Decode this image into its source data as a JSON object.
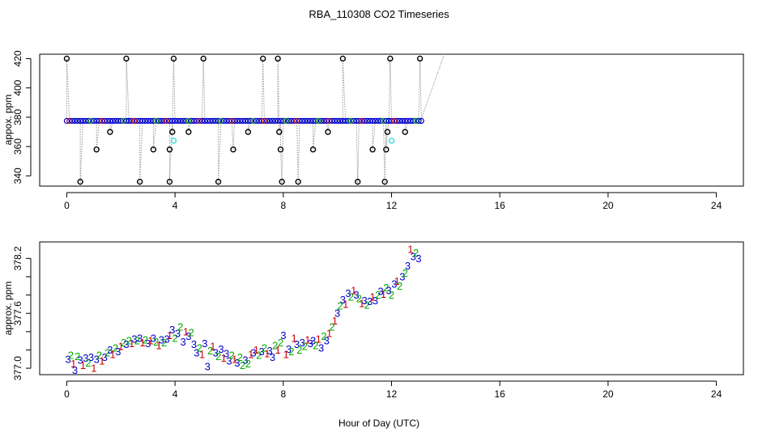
{
  "title": "RBA_110308  CO2 Timeseries",
  "xlabel": "Hour of Day (UTC)",
  "colors": {
    "black": "#000000",
    "blue": "#0000cc",
    "green": "#00aa00",
    "red": "#cc0000",
    "cyan": "#33dddd",
    "connector": "#999999"
  },
  "chart_data": [
    {
      "type": "scatter",
      "panel": "top",
      "ylabel": "appox. ppm",
      "xlim": [
        -1,
        25
      ],
      "ylim": [
        333,
        423
      ],
      "xticks": [
        0,
        4,
        8,
        12,
        16,
        20,
        24
      ],
      "yticks": [
        340,
        360,
        380,
        400,
        420
      ],
      "baseline_points": {
        "y": 377.5,
        "x": [
          0.0,
          0.1,
          0.2,
          0.3,
          0.4,
          0.5,
          0.6,
          0.7,
          0.8,
          0.9,
          1.0,
          1.1,
          1.2,
          1.3,
          1.4,
          1.5,
          1.6,
          1.7,
          1.8,
          1.9,
          2.0,
          2.1,
          2.2,
          2.3,
          2.4,
          2.5,
          2.6,
          2.7,
          2.8,
          2.9,
          3.0,
          3.1,
          3.2,
          3.3,
          3.4,
          3.5,
          3.6,
          3.7,
          3.8,
          3.9,
          4.0,
          4.1,
          4.2,
          4.3,
          4.4,
          4.5,
          4.6,
          4.7,
          4.8,
          4.9,
          5.0,
          5.1,
          5.2,
          5.3,
          5.4,
          5.5,
          5.6,
          5.7,
          5.8,
          5.9,
          6.0,
          6.1,
          6.2,
          6.3,
          6.4,
          6.5,
          6.6,
          6.7,
          6.8,
          6.9,
          7.0,
          7.1,
          7.2,
          7.3,
          7.4,
          7.5,
          7.6,
          7.7,
          7.8,
          7.9,
          8.0,
          8.1,
          8.2,
          8.3,
          8.4,
          8.5,
          8.6,
          8.7,
          8.8,
          8.9,
          9.0,
          9.1,
          9.2,
          9.3,
          9.4,
          9.5,
          9.6,
          9.7,
          9.8,
          9.9,
          10.0,
          10.1,
          10.2,
          10.3,
          10.4,
          10.5,
          10.6,
          10.7,
          10.8,
          10.9,
          11.0,
          11.1,
          11.2,
          11.3,
          11.4,
          11.5,
          11.6,
          11.7,
          11.8,
          11.9,
          12.0,
          12.1,
          12.2,
          12.3,
          12.4,
          12.5,
          12.6,
          12.7,
          12.8,
          12.9,
          13.0,
          13.1
        ]
      },
      "outliers": [
        {
          "x": 0.0,
          "y": 420
        },
        {
          "x": 0.5,
          "y": 336
        },
        {
          "x": 1.1,
          "y": 358
        },
        {
          "x": 1.6,
          "y": 370
        },
        {
          "x": 2.2,
          "y": 420
        },
        {
          "x": 2.7,
          "y": 336
        },
        {
          "x": 3.2,
          "y": 358
        },
        {
          "x": 3.8,
          "y": 358
        },
        {
          "x": 3.8,
          "y": 336
        },
        {
          "x": 3.9,
          "y": 370
        },
        {
          "x": 3.95,
          "y": 420
        },
        {
          "x": 4.5,
          "y": 370
        },
        {
          "x": 5.05,
          "y": 420
        },
        {
          "x": 5.6,
          "y": 336
        },
        {
          "x": 6.15,
          "y": 358
        },
        {
          "x": 6.7,
          "y": 370
        },
        {
          "x": 7.25,
          "y": 420
        },
        {
          "x": 7.8,
          "y": 420
        },
        {
          "x": 7.85,
          "y": 370
        },
        {
          "x": 7.9,
          "y": 358
        },
        {
          "x": 7.95,
          "y": 336
        },
        {
          "x": 8.55,
          "y": 336
        },
        {
          "x": 9.1,
          "y": 358
        },
        {
          "x": 9.65,
          "y": 370
        },
        {
          "x": 10.2,
          "y": 420
        },
        {
          "x": 10.75,
          "y": 336
        },
        {
          "x": 11.3,
          "y": 358
        },
        {
          "x": 11.85,
          "y": 370
        },
        {
          "x": 11.75,
          "y": 336
        },
        {
          "x": 11.8,
          "y": 358
        },
        {
          "x": 11.95,
          "y": 420
        },
        {
          "x": 12.5,
          "y": 370
        },
        {
          "x": 13.05,
          "y": 420
        }
      ],
      "cyan_points": [
        {
          "x": 3.95,
          "y": 364
        },
        {
          "x": 12.0,
          "y": 364
        }
      ],
      "trailing_segment": [
        {
          "x": 13.1,
          "y": 379
        },
        {
          "x": 13.95,
          "y": 423
        }
      ]
    },
    {
      "type": "scatter",
      "panel": "bottom",
      "ylabel": "approx. ppm",
      "xlim": [
        -1,
        25
      ],
      "ylim": [
        376.93,
        378.38
      ],
      "xticks": [
        0,
        4,
        8,
        12,
        16,
        20,
        24
      ],
      "yticks": [
        377.0,
        377.2,
        377.4,
        377.6,
        377.8,
        378.0,
        378.2
      ],
      "ytick_labels": [
        "377.0",
        "",
        "",
        "377.6",
        "",
        "",
        "378.2"
      ],
      "labels": [
        {
          "x": 0.05,
          "y": 377.1,
          "t": "3"
        },
        {
          "x": 0.15,
          "y": 377.14,
          "t": "2"
        },
        {
          "x": 0.25,
          "y": 377.05,
          "t": "1"
        },
        {
          "x": 0.3,
          "y": 376.98,
          "t": "3"
        },
        {
          "x": 0.4,
          "y": 377.13,
          "t": "2"
        },
        {
          "x": 0.5,
          "y": 377.09,
          "t": "3"
        },
        {
          "x": 0.6,
          "y": 377.03,
          "t": "1"
        },
        {
          "x": 0.7,
          "y": 377.11,
          "t": "3"
        },
        {
          "x": 0.8,
          "y": 377.06,
          "t": "2"
        },
        {
          "x": 0.9,
          "y": 377.12,
          "t": "3"
        },
        {
          "x": 1.0,
          "y": 377.0,
          "t": "1"
        },
        {
          "x": 1.1,
          "y": 377.1,
          "t": "3"
        },
        {
          "x": 1.2,
          "y": 377.14,
          "t": "2"
        },
        {
          "x": 1.3,
          "y": 377.08,
          "t": "1"
        },
        {
          "x": 1.4,
          "y": 377.12,
          "t": "3"
        },
        {
          "x": 1.5,
          "y": 377.17,
          "t": "2"
        },
        {
          "x": 1.6,
          "y": 377.2,
          "t": "3"
        },
        {
          "x": 1.7,
          "y": 377.15,
          "t": "1"
        },
        {
          "x": 1.8,
          "y": 377.22,
          "t": "2"
        },
        {
          "x": 1.9,
          "y": 377.18,
          "t": "3"
        },
        {
          "x": 2.0,
          "y": 377.24,
          "t": "1"
        },
        {
          "x": 2.1,
          "y": 377.28,
          "t": "2"
        },
        {
          "x": 2.2,
          "y": 377.26,
          "t": "3"
        },
        {
          "x": 2.3,
          "y": 377.3,
          "t": "2"
        },
        {
          "x": 2.4,
          "y": 377.27,
          "t": "1"
        },
        {
          "x": 2.5,
          "y": 377.32,
          "t": "3"
        },
        {
          "x": 2.6,
          "y": 377.3,
          "t": "2"
        },
        {
          "x": 2.7,
          "y": 377.33,
          "t": "3"
        },
        {
          "x": 2.8,
          "y": 377.28,
          "t": "1"
        },
        {
          "x": 2.9,
          "y": 377.31,
          "t": "2"
        },
        {
          "x": 3.0,
          "y": 377.27,
          "t": "3"
        },
        {
          "x": 3.1,
          "y": 377.3,
          "t": "1"
        },
        {
          "x": 3.2,
          "y": 377.33,
          "t": "3"
        },
        {
          "x": 3.3,
          "y": 377.29,
          "t": "2"
        },
        {
          "x": 3.4,
          "y": 377.25,
          "t": "1"
        },
        {
          "x": 3.5,
          "y": 377.31,
          "t": "3"
        },
        {
          "x": 3.6,
          "y": 377.28,
          "t": "2"
        },
        {
          "x": 3.7,
          "y": 377.32,
          "t": "3"
        },
        {
          "x": 3.8,
          "y": 377.36,
          "t": "1"
        },
        {
          "x": 3.9,
          "y": 377.42,
          "t": "3"
        },
        {
          "x": 4.0,
          "y": 377.33,
          "t": "2"
        },
        {
          "x": 4.1,
          "y": 377.38,
          "t": "3"
        },
        {
          "x": 4.2,
          "y": 377.45,
          "t": "2"
        },
        {
          "x": 4.3,
          "y": 377.29,
          "t": "3"
        },
        {
          "x": 4.4,
          "y": 377.4,
          "t": "1"
        },
        {
          "x": 4.5,
          "y": 377.35,
          "t": "3"
        },
        {
          "x": 4.6,
          "y": 377.39,
          "t": "2"
        },
        {
          "x": 4.7,
          "y": 377.26,
          "t": "3"
        },
        {
          "x": 4.8,
          "y": 377.17,
          "t": "3"
        },
        {
          "x": 4.9,
          "y": 377.22,
          "t": "2"
        },
        {
          "x": 5.0,
          "y": 377.15,
          "t": "1"
        },
        {
          "x": 5.1,
          "y": 377.27,
          "t": "3"
        },
        {
          "x": 5.2,
          "y": 377.02,
          "t": "3"
        },
        {
          "x": 5.3,
          "y": 377.19,
          "t": "2"
        },
        {
          "x": 5.4,
          "y": 377.24,
          "t": "1"
        },
        {
          "x": 5.5,
          "y": 377.17,
          "t": "3"
        },
        {
          "x": 5.6,
          "y": 377.13,
          "t": "2"
        },
        {
          "x": 5.7,
          "y": 377.21,
          "t": "3"
        },
        {
          "x": 5.8,
          "y": 377.11,
          "t": "1"
        },
        {
          "x": 5.9,
          "y": 377.16,
          "t": "3"
        },
        {
          "x": 6.0,
          "y": 377.08,
          "t": "3"
        },
        {
          "x": 6.1,
          "y": 377.14,
          "t": "2"
        },
        {
          "x": 6.2,
          "y": 377.1,
          "t": "1"
        },
        {
          "x": 6.3,
          "y": 377.06,
          "t": "3"
        },
        {
          "x": 6.4,
          "y": 377.12,
          "t": "2"
        },
        {
          "x": 6.5,
          "y": 377.03,
          "t": "2"
        },
        {
          "x": 6.6,
          "y": 377.09,
          "t": "3"
        },
        {
          "x": 6.7,
          "y": 377.05,
          "t": "2"
        },
        {
          "x": 6.8,
          "y": 377.15,
          "t": "1"
        },
        {
          "x": 6.9,
          "y": 377.17,
          "t": "3"
        },
        {
          "x": 7.0,
          "y": 377.2,
          "t": "1"
        },
        {
          "x": 7.1,
          "y": 377.14,
          "t": "2"
        },
        {
          "x": 7.2,
          "y": 377.18,
          "t": "3"
        },
        {
          "x": 7.3,
          "y": 377.22,
          "t": "2"
        },
        {
          "x": 7.4,
          "y": 377.16,
          "t": "1"
        },
        {
          "x": 7.5,
          "y": 377.19,
          "t": "3"
        },
        {
          "x": 7.6,
          "y": 377.12,
          "t": "3"
        },
        {
          "x": 7.7,
          "y": 377.25,
          "t": "2"
        },
        {
          "x": 7.8,
          "y": 377.2,
          "t": "1"
        },
        {
          "x": 7.9,
          "y": 377.28,
          "t": "2"
        },
        {
          "x": 8.0,
          "y": 377.36,
          "t": "3"
        },
        {
          "x": 8.1,
          "y": 377.15,
          "t": "1"
        },
        {
          "x": 8.2,
          "y": 377.21,
          "t": "3"
        },
        {
          "x": 8.3,
          "y": 377.18,
          "t": "2"
        },
        {
          "x": 8.4,
          "y": 377.33,
          "t": "1"
        },
        {
          "x": 8.5,
          "y": 377.26,
          "t": "3"
        },
        {
          "x": 8.6,
          "y": 377.2,
          "t": "2"
        },
        {
          "x": 8.7,
          "y": 377.28,
          "t": "3"
        },
        {
          "x": 8.8,
          "y": 377.24,
          "t": "2"
        },
        {
          "x": 8.9,
          "y": 377.31,
          "t": "1"
        },
        {
          "x": 9.0,
          "y": 377.27,
          "t": "3"
        },
        {
          "x": 9.1,
          "y": 377.3,
          "t": "3"
        },
        {
          "x": 9.2,
          "y": 377.25,
          "t": "2"
        },
        {
          "x": 9.3,
          "y": 377.32,
          "t": "1"
        },
        {
          "x": 9.4,
          "y": 377.22,
          "t": "3"
        },
        {
          "x": 9.5,
          "y": 377.35,
          "t": "2"
        },
        {
          "x": 9.6,
          "y": 377.3,
          "t": "3"
        },
        {
          "x": 9.7,
          "y": 377.38,
          "t": "1"
        },
        {
          "x": 9.8,
          "y": 377.45,
          "t": "2"
        },
        {
          "x": 9.9,
          "y": 377.52,
          "t": "1"
        },
        {
          "x": 10.0,
          "y": 377.6,
          "t": "3"
        },
        {
          "x": 10.1,
          "y": 377.68,
          "t": "2"
        },
        {
          "x": 10.2,
          "y": 377.75,
          "t": "3"
        },
        {
          "x": 10.3,
          "y": 377.7,
          "t": "1"
        },
        {
          "x": 10.4,
          "y": 377.82,
          "t": "3"
        },
        {
          "x": 10.5,
          "y": 377.78,
          "t": "2"
        },
        {
          "x": 10.6,
          "y": 377.85,
          "t": "1"
        },
        {
          "x": 10.7,
          "y": 377.8,
          "t": "3"
        },
        {
          "x": 10.8,
          "y": 377.76,
          "t": "2"
        },
        {
          "x": 10.9,
          "y": 377.71,
          "t": "1"
        },
        {
          "x": 11.0,
          "y": 377.74,
          "t": "3"
        },
        {
          "x": 11.1,
          "y": 377.69,
          "t": "2"
        },
        {
          "x": 11.2,
          "y": 377.73,
          "t": "3"
        },
        {
          "x": 11.3,
          "y": 377.78,
          "t": "1"
        },
        {
          "x": 11.4,
          "y": 377.74,
          "t": "3"
        },
        {
          "x": 11.5,
          "y": 377.8,
          "t": "2"
        },
        {
          "x": 11.6,
          "y": 377.84,
          "t": "3"
        },
        {
          "x": 11.7,
          "y": 377.81,
          "t": "1"
        },
        {
          "x": 11.8,
          "y": 377.88,
          "t": "2"
        },
        {
          "x": 11.9,
          "y": 377.85,
          "t": "3"
        },
        {
          "x": 12.0,
          "y": 377.8,
          "t": "2"
        },
        {
          "x": 12.1,
          "y": 377.92,
          "t": "3"
        },
        {
          "x": 12.2,
          "y": 377.95,
          "t": "1"
        },
        {
          "x": 12.3,
          "y": 377.9,
          "t": "2"
        },
        {
          "x": 12.4,
          "y": 378.0,
          "t": "3"
        },
        {
          "x": 12.5,
          "y": 378.04,
          "t": "2"
        },
        {
          "x": 12.6,
          "y": 378.12,
          "t": "3"
        },
        {
          "x": 12.7,
          "y": 378.3,
          "t": "1"
        },
        {
          "x": 12.8,
          "y": 378.22,
          "t": "3"
        },
        {
          "x": 12.9,
          "y": 378.26,
          "t": "2"
        },
        {
          "x": 13.0,
          "y": 378.2,
          "t": "3"
        }
      ]
    }
  ]
}
